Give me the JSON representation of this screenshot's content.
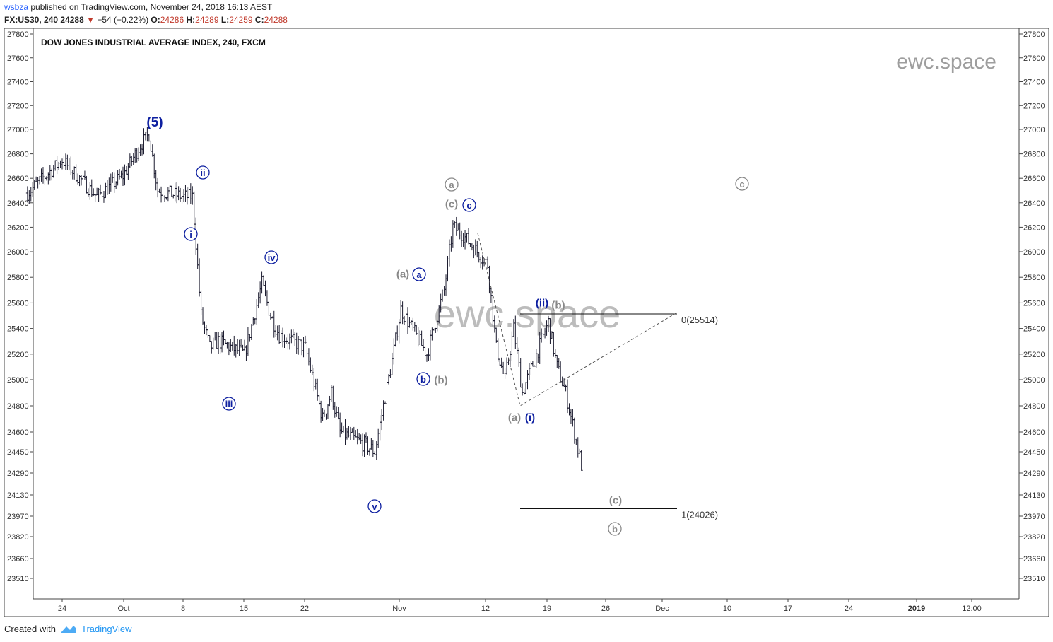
{
  "header": {
    "user": "wsbza",
    "published": " published on TradingView.com, November 24, 2018 16:13 AEST",
    "symbol": "FX:US30, 240",
    "last": "24288",
    "change": "−54 (−0.22%)",
    "o_label": "O:",
    "o_value": "24286",
    "h_label": "H:",
    "h_value": "24289",
    "l_label": "L:",
    "l_value": "24259",
    "c_label": "C:",
    "c_value": "24288"
  },
  "footer": {
    "created": "Created with",
    "brand": "TradingView"
  },
  "colors": {
    "candle": "#1a1a2e",
    "blue": "#0d1fa0",
    "gray": "#888888",
    "up_arrow": "#c0392b"
  },
  "chart_data": {
    "type": "line",
    "title": "DOW JONES INDUSTRIAL AVERAGE INDEX, 240, FXCM",
    "watermark_small": "ewc.space",
    "watermark_large": "ewc.space",
    "y_ticks_labels": [
      "27800",
      "27600",
      "27400",
      "27200",
      "27000",
      "26800",
      "26600",
      "26400",
      "26200",
      "26000",
      "25800",
      "25600",
      "25400",
      "25200",
      "25000",
      "24800",
      "24600",
      "24450",
      "24290",
      "24130",
      "23970",
      "23820",
      "23660",
      "23510"
    ],
    "x_tick_labels": [
      "24",
      "Oct",
      "8",
      "15",
      "22",
      "Nov",
      "12",
      "19",
      "26",
      "Dec",
      "10",
      "17",
      "24",
      "2019",
      "12:00"
    ],
    "ylim": [
      23400,
      27850
    ],
    "series": [
      {
        "x": [
          "2018-09-20",
          "2018-09-24",
          "2018-09-26",
          "2018-09-28",
          "2018-10-01",
          "2018-10-03",
          "2018-10-04",
          "2018-10-05",
          "2018-10-08",
          "2018-10-09",
          "2018-10-10",
          "2018-10-11",
          "2018-10-12",
          "2018-10-15",
          "2018-10-17",
          "2018-10-18",
          "2018-10-19",
          "2018-10-22",
          "2018-10-24",
          "2018-10-25",
          "2018-10-26",
          "2018-10-29",
          "2018-10-30",
          "2018-10-31",
          "2018-11-01",
          "2018-11-02",
          "2018-11-05",
          "2018-11-07",
          "2018-11-08",
          "2018-11-09",
          "2018-11-12",
          "2018-11-13",
          "2018-11-14",
          "2018-11-15",
          "2018-11-16",
          "2018-11-19",
          "2018-11-20",
          "2018-11-21",
          "2018-11-23"
        ],
        "values": [
          26480,
          26750,
          26600,
          26450,
          26620,
          26870,
          26960,
          26500,
          26450,
          26450,
          25500,
          25250,
          25300,
          25200,
          25750,
          25500,
          25350,
          25250,
          24700,
          24900,
          24600,
          24500,
          24450,
          24800,
          25150,
          25550,
          25200,
          25700,
          26200,
          26150,
          25900,
          25250,
          25000,
          25400,
          24900,
          25450,
          25100,
          24900,
          24288
        ]
      }
    ],
    "annotations": {
      "blue": [
        "(5)",
        "i",
        "ii",
        "iii",
        "iv",
        "v",
        "a",
        "b",
        "c",
        "(i)",
        "(ii)"
      ],
      "gray": [
        "(a)",
        "(b)",
        "(c)",
        "a",
        "c",
        "(a)",
        "(b)",
        "(c)",
        "b"
      ]
    },
    "fib_levels": [
      {
        "label": "0(25514)",
        "value": 25514
      },
      {
        "label": "1(24026)",
        "value": 24026
      }
    ]
  }
}
